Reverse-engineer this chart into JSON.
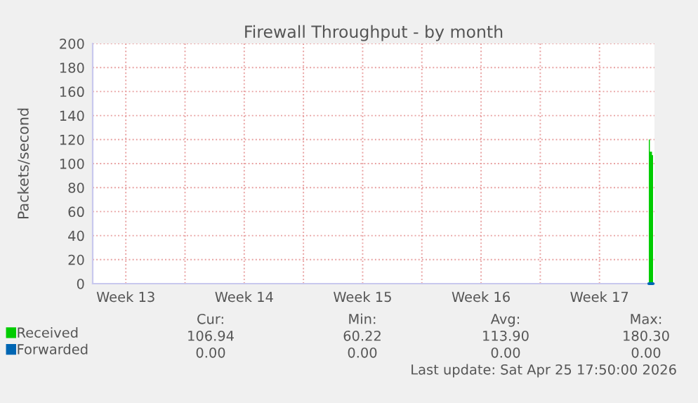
{
  "chart_data": {
    "type": "area",
    "title": "Firewall Throughput - by month",
    "ylabel": "Packets/second",
    "xlim": [
      "2026-03-23T13:00",
      "2026-04-25T18:00"
    ],
    "ylim": [
      0,
      200
    ],
    "xticks": [
      {
        "value": "2026-03-25T12:00",
        "label": "Week 13"
      },
      {
        "value": "2026-03-29",
        "label": null
      },
      {
        "value": "2026-04-01T12:00",
        "label": "Week 14"
      },
      {
        "value": "2026-04-05",
        "label": null
      },
      {
        "value": "2026-04-08T12:00",
        "label": "Week 15"
      },
      {
        "value": "2026-04-12",
        "label": null
      },
      {
        "value": "2026-04-15T12:00",
        "label": "Week 16"
      },
      {
        "value": "2026-04-19",
        "label": null
      },
      {
        "value": "2026-04-22T12:00",
        "label": "Week 17"
      }
    ],
    "yticks": [
      0,
      20,
      40,
      60,
      80,
      100,
      120,
      140,
      160,
      180,
      200
    ],
    "grid": true,
    "legend": "bottom",
    "series": [
      {
        "name": "Received",
        "color": "#00cc00",
        "x": [
          "2026-04-25T10:00",
          "2026-04-25T13:00",
          "2026-04-25T16:00"
        ],
        "values": [
          120,
          110,
          107
        ]
      },
      {
        "name": "Forwarded",
        "type": "line",
        "color": "#0066b3",
        "x": [
          "2026-04-25T10:00",
          "2026-04-25T13:00",
          "2026-04-25T16:00"
        ],
        "values": [
          0,
          0,
          0
        ]
      }
    ],
    "annotations": [
      "Cur:",
      "Min:",
      "Avg:",
      "Max:",
      "106.94",
      "60.22",
      "113.90",
      "180.30",
      "0.00",
      "0.00",
      "0.00",
      "0.00",
      "Last update: Sat Apr 25 17:50:00 2026"
    ]
  }
}
